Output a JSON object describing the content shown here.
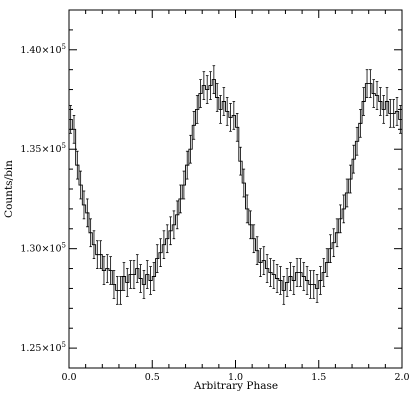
{
  "chart_data": {
    "type": "line",
    "title": "",
    "xlabel": "Arbitrary Phase",
    "ylabel": "Counts/bin",
    "xlim": [
      0.0,
      2.0
    ],
    "ylim": [
      124000,
      142000
    ],
    "xticks": [
      {
        "value": 0.0,
        "label": "0.0"
      },
      {
        "value": 0.5,
        "label": "0.5"
      },
      {
        "value": 1.0,
        "label": "1.0"
      },
      {
        "value": 1.5,
        "label": "1.5"
      },
      {
        "value": 2.0,
        "label": "2.0"
      }
    ],
    "yticks": [
      {
        "value": 125000,
        "mantissa": "1.25",
        "base": "×10",
        "exp": "5"
      },
      {
        "value": 130000,
        "mantissa": "1.30",
        "base": "×10",
        "exp": "5"
      },
      {
        "value": 135000,
        "mantissa": "1.35",
        "base": "×10",
        "exp": "5"
      },
      {
        "value": 140000,
        "mantissa": "1.40",
        "base": "×10",
        "exp": "5"
      }
    ],
    "bin_width": 0.02,
    "error_bar": 700,
    "series": [
      {
        "style": "histogram-step-with-error-bars",
        "x": [
          0.0,
          0.02,
          0.04,
          0.06,
          0.08,
          0.1,
          0.12,
          0.14,
          0.16,
          0.18,
          0.2,
          0.22,
          0.24,
          0.26,
          0.28,
          0.3,
          0.32,
          0.34,
          0.36,
          0.38,
          0.4,
          0.42,
          0.44,
          0.46,
          0.48,
          0.5,
          0.52,
          0.54,
          0.56,
          0.58,
          0.6,
          0.62,
          0.64,
          0.66,
          0.68,
          0.7,
          0.72,
          0.74,
          0.76,
          0.78,
          0.8,
          0.82,
          0.84,
          0.86,
          0.88,
          0.9,
          0.92,
          0.94,
          0.96,
          0.98,
          1.0,
          1.02,
          1.04,
          1.06,
          1.08,
          1.1,
          1.12,
          1.14,
          1.16,
          1.18,
          1.2,
          1.22,
          1.24,
          1.26,
          1.28,
          1.3,
          1.32,
          1.34,
          1.36,
          1.38,
          1.4,
          1.42,
          1.44,
          1.46,
          1.48,
          1.5,
          1.52,
          1.54,
          1.56,
          1.58,
          1.6,
          1.62,
          1.64,
          1.66,
          1.68,
          1.7,
          1.72,
          1.74,
          1.76,
          1.78,
          1.8,
          1.82,
          1.84,
          1.86,
          1.88,
          1.9,
          1.92,
          1.94,
          1.96,
          1.98
        ],
        "y": [
          136500,
          136000,
          134200,
          133200,
          132200,
          131800,
          130800,
          130200,
          129700,
          129700,
          128900,
          129000,
          128900,
          128200,
          127900,
          127900,
          128600,
          128300,
          128700,
          128700,
          129000,
          128500,
          128200,
          128700,
          128400,
          128600,
          129500,
          129800,
          130200,
          130500,
          130900,
          131200,
          131700,
          132500,
          133200,
          134200,
          135000,
          136200,
          137000,
          137800,
          138200,
          138000,
          138200,
          138500,
          137600,
          137000,
          137400,
          136900,
          136600,
          136700,
          136100,
          134400,
          133300,
          132000,
          131200,
          130500,
          129900,
          129300,
          129400,
          129000,
          128800,
          128700,
          128500,
          128400,
          127900,
          128300,
          128600,
          128400,
          128800,
          128800,
          128600,
          128400,
          128200,
          128200,
          128000,
          128400,
          128800,
          129300,
          130000,
          130300,
          130800,
          131500,
          132000,
          132800,
          133500,
          134500,
          135400,
          136300,
          137400,
          138300,
          138300,
          137800,
          137700,
          137400,
          137000,
          137400,
          136800,
          136800,
          136900,
          136500
        ]
      }
    ]
  }
}
